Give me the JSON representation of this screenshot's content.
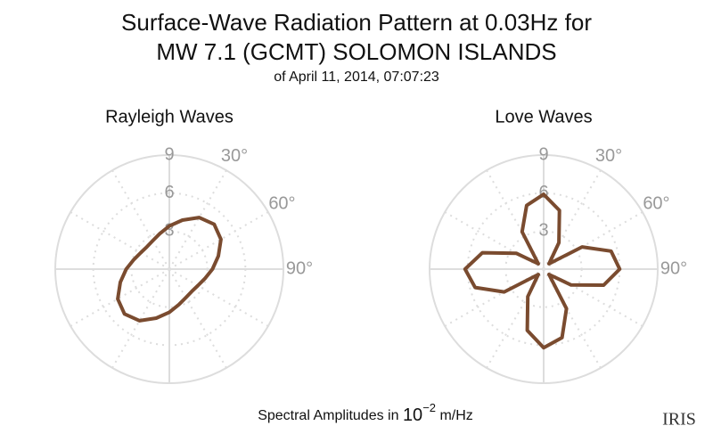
{
  "title": [
    "Surface-Wave Radiation Pattern at 0.03Hz for",
    "MW 7.1 (GCMT) SOLOMON ISLANDS"
  ],
  "subtitle": "of April 11, 2014, 07:07:23",
  "caption": {
    "text": "Spectral Amplitudes in ",
    "base": "10",
    "exponent": "−2",
    "unit": " m/Hz"
  },
  "logo": "IRIS",
  "chart_data": [
    {
      "type": "polar",
      "title": "Rayleigh Waves",
      "color": "#7a4b2f",
      "theta": [
        0,
        15,
        30,
        45,
        60,
        75,
        90,
        105,
        120,
        135,
        150,
        165,
        180,
        195,
        210,
        225,
        240,
        255,
        270,
        285,
        300,
        315,
        330,
        345
      ],
      "values": [
        3.4,
        4.0,
        4.7,
        5.0,
        4.7,
        4.0,
        3.4,
        2.9,
        2.6,
        2.5,
        2.6,
        2.9,
        3.4,
        4.0,
        4.7,
        5.0,
        4.7,
        4.0,
        3.4,
        2.9,
        2.6,
        2.5,
        2.6,
        2.9
      ],
      "rlim": [
        0,
        9
      ],
      "rticks": [
        3,
        6,
        9
      ],
      "thetagrid": [
        0,
        30,
        60,
        90,
        120,
        150,
        180,
        210,
        240,
        270,
        300,
        330
      ],
      "thetaticks": [
        {
          "value": 30,
          "label": "30°"
        },
        {
          "value": 60,
          "label": "60°"
        },
        {
          "value": 90,
          "label": "90°"
        }
      ]
    },
    {
      "type": "polar",
      "title": "Love Waves",
      "color": "#7a4b2f",
      "theta": [
        0,
        15,
        30,
        45,
        60,
        75,
        90,
        105,
        120,
        135,
        150,
        165,
        180,
        195,
        210,
        225,
        240,
        255,
        270,
        285,
        300,
        315,
        330,
        345
      ],
      "values": [
        5.9,
        4.8,
        2.4,
        0.6,
        3.5,
        5.5,
        6.0,
        4.9,
        2.5,
        0.6,
        3.6,
        5.6,
        6.2,
        5.0,
        2.5,
        0.6,
        3.6,
        5.6,
        6.2,
        5.0,
        2.5,
        0.6,
        3.4,
        5.2
      ],
      "rlim": [
        0,
        9
      ],
      "rticks": [
        3,
        6,
        9
      ],
      "thetagrid": [
        0,
        30,
        60,
        90,
        120,
        150,
        180,
        210,
        240,
        270,
        300,
        330
      ],
      "thetaticks": [
        {
          "value": 30,
          "label": "30°"
        },
        {
          "value": 60,
          "label": "60°"
        },
        {
          "value": 90,
          "label": "90°"
        }
      ]
    }
  ]
}
